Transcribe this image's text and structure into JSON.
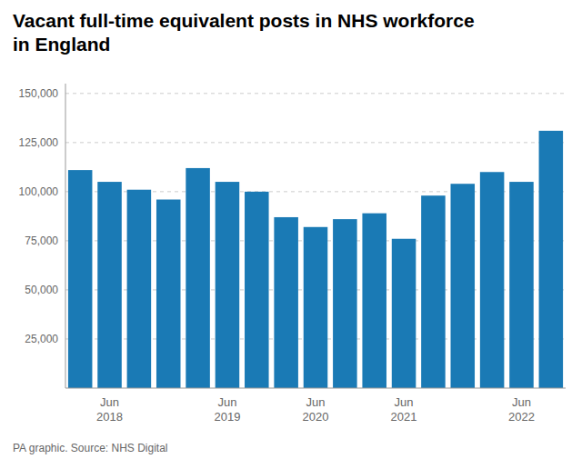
{
  "chart_data": {
    "type": "bar",
    "title": "Vacant full-time equivalent posts in NHS workforce\nin England",
    "categories": [
      null,
      "Jun\n2018",
      null,
      null,
      null,
      "Jun\n2019",
      null,
      null,
      "Jun\n2020",
      null,
      null,
      "Jun\n2021",
      null,
      null,
      null,
      "Jun\n2022",
      null
    ],
    "values": [
      111000,
      105000,
      101000,
      96000,
      112000,
      105000,
      100000,
      87000,
      82000,
      86000,
      89000,
      76000,
      98000,
      104000,
      110000,
      105000,
      131000
    ],
    "color": "#1a7ab5",
    "ylim": [
      0,
      155000
    ],
    "yticks": [
      {
        "value": 25000,
        "label": "25,000"
      },
      {
        "value": 50000,
        "label": "50,000"
      },
      {
        "value": 75000,
        "label": "75,000"
      },
      {
        "value": 100000,
        "label": "100,000"
      },
      {
        "value": 125000,
        "label": "125,000"
      },
      {
        "value": 150000,
        "label": "150,000"
      }
    ],
    "grid": true,
    "annotations": [
      "PA graphic. Source: NHS Digital"
    ]
  }
}
